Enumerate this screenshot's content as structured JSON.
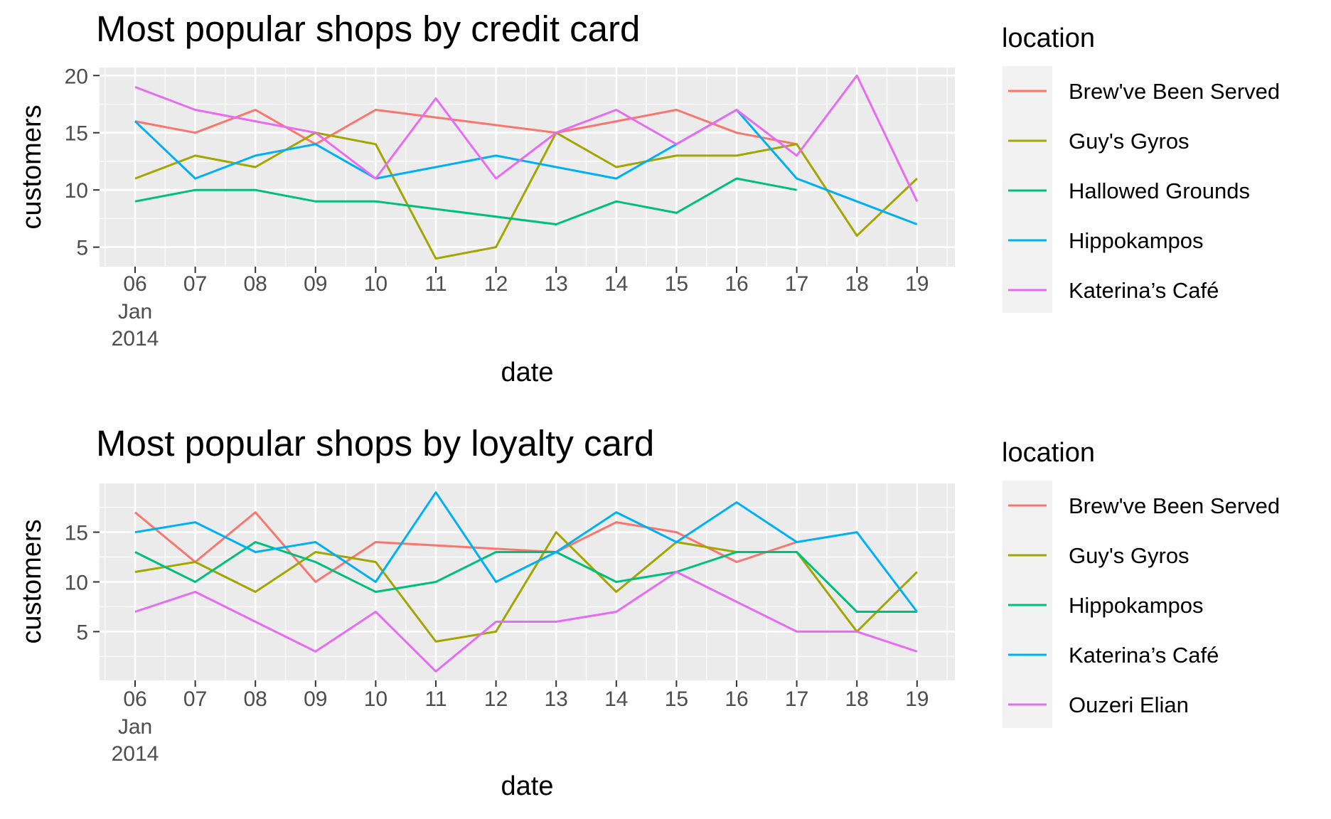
{
  "chart_data": [
    {
      "type": "line",
      "title": "Most popular shops by credit card",
      "xlabel": "date",
      "ylabel": "customers",
      "x": [
        "2014-01-06",
        "2014-01-07",
        "2014-01-08",
        "2014-01-09",
        "2014-01-10",
        "2014-01-11",
        "2014-01-12",
        "2014-01-13",
        "2014-01-14",
        "2014-01-15",
        "2014-01-16",
        "2014-01-17",
        "2014-01-18",
        "2014-01-19"
      ],
      "x_tick_labels": [
        "06",
        "07",
        "08",
        "09",
        "10",
        "11",
        "12",
        "13",
        "14",
        "15",
        "16",
        "17",
        "18",
        "19"
      ],
      "x_first_tick_extra": [
        "Jan",
        "2014"
      ],
      "ylim": [
        3.3,
        20.7
      ],
      "y_ticks": [
        5,
        10,
        15,
        20
      ],
      "grid": true,
      "legend_title": "location",
      "legend_position": "right",
      "series": [
        {
          "name": "Brew've Been Served",
          "color": "#F8766D",
          "values": [
            16,
            15,
            17,
            14,
            17,
            null,
            null,
            15,
            16,
            17,
            15,
            14,
            null,
            null
          ]
        },
        {
          "name": "Guy's Gyros",
          "color": "#A3A500",
          "values": [
            11,
            13,
            12,
            15,
            14,
            4,
            5,
            15,
            12,
            13,
            13,
            14,
            6,
            11
          ]
        },
        {
          "name": "Hallowed Grounds",
          "color": "#00BF7D",
          "values": [
            9,
            10,
            10,
            9,
            9,
            null,
            null,
            7,
            9,
            8,
            11,
            10,
            null,
            null
          ]
        },
        {
          "name": "Hippokampos",
          "color": "#00B0F6",
          "values": [
            16,
            11,
            13,
            14,
            11,
            12,
            13,
            12,
            11,
            14,
            17,
            11,
            9,
            7
          ]
        },
        {
          "name": "Katerina’s Café",
          "color": "#E76BF3",
          "values": [
            19,
            17,
            16,
            15,
            11,
            18,
            11,
            15,
            17,
            14,
            17,
            13,
            20,
            9
          ]
        }
      ]
    },
    {
      "type": "line",
      "title": "Most popular shops by loyalty card",
      "xlabel": "date",
      "ylabel": "customers",
      "x": [
        "2014-01-06",
        "2014-01-07",
        "2014-01-08",
        "2014-01-09",
        "2014-01-10",
        "2014-01-11",
        "2014-01-12",
        "2014-01-13",
        "2014-01-14",
        "2014-01-15",
        "2014-01-16",
        "2014-01-17",
        "2014-01-18",
        "2014-01-19"
      ],
      "x_tick_labels": [
        "06",
        "07",
        "08",
        "09",
        "10",
        "11",
        "12",
        "13",
        "14",
        "15",
        "16",
        "17",
        "18",
        "19"
      ],
      "x_first_tick_extra": [
        "Jan",
        "2014"
      ],
      "ylim": [
        0.1,
        19.9
      ],
      "y_ticks": [
        5,
        10,
        15
      ],
      "grid": true,
      "legend_title": "location",
      "legend_position": "right",
      "series": [
        {
          "name": "Brew've Been Served",
          "color": "#F8766D",
          "values": [
            17,
            12,
            17,
            10,
            14,
            null,
            null,
            13,
            16,
            15,
            12,
            14,
            null,
            null
          ]
        },
        {
          "name": "Guy's Gyros",
          "color": "#A3A500",
          "values": [
            11,
            12,
            9,
            13,
            12,
            4,
            5,
            15,
            9,
            14,
            13,
            13,
            5,
            11
          ]
        },
        {
          "name": "Hippokampos",
          "color": "#00BF7D",
          "values": [
            13,
            10,
            14,
            12,
            9,
            10,
            13,
            13,
            10,
            11,
            13,
            13,
            7,
            7
          ]
        },
        {
          "name": "Katerina’s Café",
          "color": "#00B0F6",
          "values": [
            15,
            16,
            13,
            14,
            10,
            19,
            10,
            13,
            17,
            14,
            18,
            14,
            15,
            7
          ]
        },
        {
          "name": "Ouzeri Elian",
          "color": "#E76BF3",
          "values": [
            7,
            9,
            6,
            3,
            7,
            1,
            6,
            6,
            7,
            11,
            8,
            5,
            5,
            3
          ]
        }
      ]
    }
  ]
}
